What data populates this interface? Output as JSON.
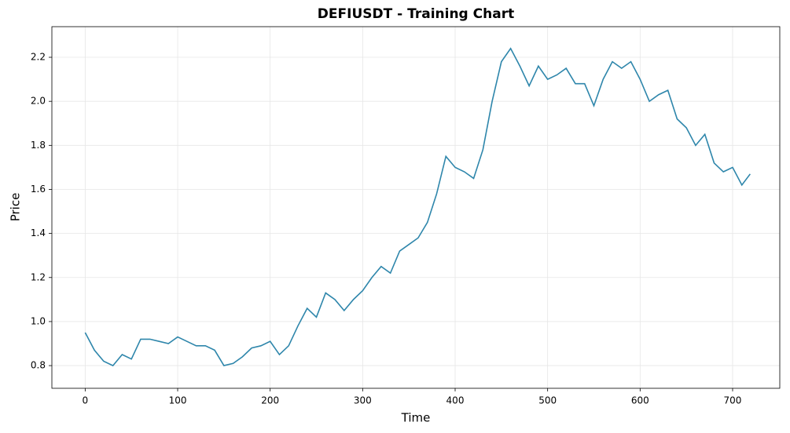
{
  "chart_data": {
    "type": "line",
    "title": "DEFIUSDT - Training Chart",
    "x_label": "Time",
    "y_label": "Price",
    "x": [
      0,
      10,
      20,
      30,
      40,
      50,
      60,
      70,
      80,
      90,
      100,
      110,
      120,
      130,
      140,
      150,
      160,
      170,
      180,
      190,
      200,
      210,
      220,
      230,
      240,
      250,
      260,
      270,
      280,
      290,
      300,
      310,
      320,
      330,
      340,
      350,
      360,
      370,
      380,
      390,
      400,
      410,
      420,
      430,
      440,
      450,
      460,
      470,
      480,
      490,
      500,
      510,
      520,
      530,
      540,
      550,
      560,
      570,
      580,
      590,
      600,
      610,
      620,
      630,
      640,
      650,
      660,
      670,
      680,
      690,
      700,
      710,
      719
    ],
    "series": [
      {
        "color": "#2e86ab",
        "values": [
          0.95,
          0.87,
          0.82,
          0.8,
          0.85,
          0.83,
          0.92,
          0.92,
          0.91,
          0.9,
          0.93,
          0.91,
          0.89,
          0.89,
          0.87,
          0.8,
          0.81,
          0.84,
          0.88,
          0.89,
          0.91,
          0.85,
          0.89,
          0.98,
          1.06,
          1.02,
          1.13,
          1.1,
          1.05,
          1.1,
          1.14,
          1.2,
          1.25,
          1.22,
          1.32,
          1.35,
          1.38,
          1.45,
          1.58,
          1.75,
          1.7,
          1.68,
          1.65,
          1.78,
          2.0,
          2.18,
          2.24,
          2.16,
          2.07,
          2.16,
          2.1,
          2.12,
          2.15,
          2.08,
          2.08,
          1.98,
          2.1,
          2.18,
          2.15,
          2.18,
          2.1,
          2.0,
          2.03,
          2.05,
          1.92,
          1.88,
          1.8,
          1.85,
          1.72,
          1.68,
          1.7,
          1.62,
          1.67
        ]
      }
    ],
    "xlim": [
      -36,
      751
    ],
    "ylim": [
      0.697,
      2.339
    ],
    "xticks": [
      0,
      100,
      200,
      300,
      400,
      500,
      600,
      700
    ],
    "yticks": [
      0.8,
      {
        "value": 1.0,
        "label": "1.0"
      },
      1.2,
      1.4,
      1.6,
      1.8,
      {
        "value": 2.0,
        "label": "2.0"
      },
      2.2
    ],
    "grid": true
  }
}
